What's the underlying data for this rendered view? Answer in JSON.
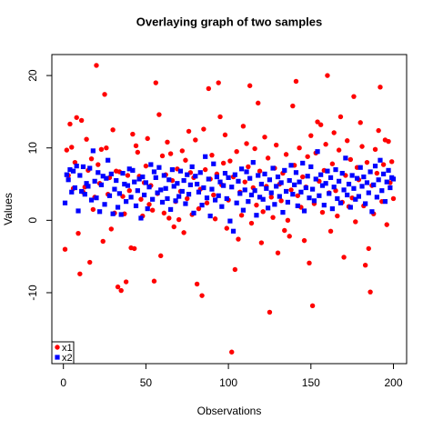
{
  "chart_data": {
    "type": "scatter",
    "title": "Overlaying graph of two samples",
    "xlabel": "Observations",
    "ylabel": "Values",
    "x": [
      1,
      2,
      3,
      4,
      5,
      6,
      7,
      8,
      9,
      10,
      11,
      12,
      13,
      14,
      15,
      16,
      17,
      18,
      19,
      20,
      21,
      22,
      23,
      24,
      25,
      26,
      27,
      28,
      29,
      30,
      31,
      32,
      33,
      34,
      35,
      36,
      37,
      38,
      39,
      40,
      41,
      42,
      43,
      44,
      45,
      46,
      47,
      48,
      49,
      50,
      51,
      52,
      53,
      54,
      55,
      56,
      57,
      58,
      59,
      60,
      61,
      62,
      63,
      64,
      65,
      66,
      67,
      68,
      69,
      70,
      71,
      72,
      73,
      74,
      75,
      76,
      77,
      78,
      79,
      80,
      81,
      82,
      83,
      84,
      85,
      86,
      87,
      88,
      89,
      90,
      91,
      92,
      93,
      94,
      95,
      96,
      97,
      98,
      99,
      100,
      101,
      102,
      103,
      104,
      105,
      106,
      107,
      108,
      109,
      110,
      111,
      112,
      113,
      114,
      115,
      116,
      117,
      118,
      119,
      120,
      121,
      122,
      123,
      124,
      125,
      126,
      127,
      128,
      129,
      130,
      131,
      132,
      133,
      134,
      135,
      136,
      137,
      138,
      139,
      140,
      141,
      142,
      143,
      144,
      145,
      146,
      147,
      148,
      149,
      150,
      151,
      152,
      153,
      154,
      155,
      156,
      157,
      158,
      159,
      160,
      161,
      162,
      163,
      164,
      165,
      166,
      167,
      168,
      169,
      170,
      171,
      172,
      173,
      174,
      175,
      176,
      177,
      178,
      179,
      180,
      181,
      182,
      183,
      184,
      185,
      186,
      187,
      188,
      189,
      190,
      191,
      192,
      193,
      194,
      195,
      196,
      197,
      198,
      199,
      200
    ],
    "series": [
      {
        "name": "x1",
        "color": "#ff0000",
        "marker": "circle",
        "values": [
          -4.0,
          9.7,
          6.2,
          13.3,
          10.1,
          4.4,
          8.0,
          14.2,
          -1.8,
          -7.4,
          13.8,
          3.9,
          4.6,
          11.2,
          6.9,
          -5.8,
          8.5,
          1.5,
          3.2,
          21.4,
          7.7,
          5.1,
          9.8,
          -2.9,
          17.4,
          10.0,
          3.6,
          5.9,
          -1.2,
          12.5,
          1.0,
          6.8,
          -9.2,
          6.7,
          -9.7,
          3.3,
          0.9,
          -8.5,
          6.2,
          4.1,
          -3.8,
          11.9,
          -3.9,
          10.3,
          9.4,
          6.1,
          2.9,
          0.6,
          5.2,
          7.5,
          11.3,
          2.2,
          4.8,
          1.4,
          -8.4,
          19.0,
          3.7,
          14.6,
          -4.9,
          8.9,
          1.0,
          6.3,
          10.8,
          0.3,
          9.2,
          5.5,
          -0.9,
          2.6,
          7.1,
          0.1,
          4.0,
          9.6,
          -1.7,
          8.3,
          3.0,
          12.3,
          6.6,
          0.8,
          5.9,
          11.1,
          -8.8,
          1.6,
          4.3,
          -10.4,
          12.6,
          7.0,
          2.4,
          18.2,
          5.7,
          9.0,
          3.5,
          0.2,
          6.4,
          19.0,
          14.3,
          4.9,
          7.9,
          11.8,
          -1.1,
          2.8,
          8.2,
          -18.2,
          6.0,
          -6.8,
          9.5,
          -2.6,
          3.9,
          0.7,
          13.0,
          5.3,
          10.6,
          7.4,
          18.6,
          -0.4,
          4.5,
          9.9,
          2.1,
          16.2,
          6.8,
          -3.1,
          1.2,
          11.5,
          4.7,
          8.6,
          -12.7,
          3.2,
          0.4,
          7.2,
          10.4,
          -4.5,
          5.0,
          2.7,
          6.5,
          -1.4,
          9.1,
          0.0,
          -2.2,
          4.2,
          15.8,
          7.6,
          19.2,
          3.4,
          10.0,
          1.8,
          6.0,
          -2.8,
          4.6,
          8.8,
          -5.9,
          11.7,
          -11.8,
          2.3,
          9.3,
          13.6,
          5.4,
          13.2,
          1.1,
          6.9,
          10.5,
          20.0,
          3.8,
          -1.5,
          7.8,
          12.1,
          4.1,
          0.6,
          9.7,
          14.3,
          2.5,
          -5.1,
          6.2,
          11.0,
          1.9,
          8.4,
          3.1,
          17.1,
          -0.2,
          7.3,
          5.6,
          13.5,
          10.2,
          2.0,
          -6.2,
          8.0,
          -3.9,
          -9.9,
          4.8,
          0.9,
          9.8,
          6.5,
          12.4,
          18.4,
          2.6,
          7.7,
          11.1,
          -0.6,
          10.9,
          5.2,
          8.1,
          3.0
        ]
      },
      {
        "name": "x2",
        "color": "#0000ff",
        "marker": "square",
        "values": [
          2.4,
          6.3,
          5.6,
          7.0,
          3.9,
          6.8,
          4.5,
          7.5,
          1.3,
          6.2,
          4.0,
          7.4,
          3.6,
          5.1,
          4.7,
          7.2,
          2.8,
          9.6,
          5.4,
          3.1,
          6.6,
          1.2,
          4.9,
          6.1,
          2.2,
          5.8,
          8.3,
          3.4,
          6.4,
          0.9,
          4.3,
          5.5,
          1.8,
          3.7,
          0.8,
          6.5,
          5.0,
          2.6,
          4.8,
          7.1,
          3.2,
          6.9,
          5.3,
          2.0,
          4.1,
          5.7,
          0.3,
          6.0,
          3.5,
          5.2,
          1.6,
          4.6,
          7.7,
          2.9,
          6.7,
          5.9,
          3.8,
          7.3,
          4.2,
          2.5,
          6.2,
          4.4,
          3.0,
          5.6,
          1.5,
          7.0,
          4.7,
          2.7,
          5.1,
          3.3,
          6.8,
          4.0,
          5.5,
          2.3,
          6.3,
          3.6,
          4.9,
          7.4,
          1.0,
          6.1,
          5.0,
          3.9,
          6.6,
          2.1,
          4.5,
          8.8,
          3.1,
          5.7,
          0.6,
          4.3,
          7.8,
          2.8,
          6.0,
          3.4,
          5.3,
          1.9,
          4.8,
          6.5,
          3.0,
          5.9,
          -0.1,
          4.6,
          -1.5,
          6.3,
          2.4,
          5.4,
          3.7,
          7.1,
          1.4,
          4.2,
          6.7,
          2.6,
          5.8,
          3.5,
          8.0,
          4.1,
          0.7,
          6.2,
          3.2,
          5.0,
          2.9,
          6.4,
          4.4,
          1.7,
          5.6,
          3.8,
          7.2,
          2.2,
          4.7,
          6.0,
          3.3,
          5.2,
          1.1,
          6.9,
          4.0,
          2.5,
          5.5,
          7.6,
          3.6,
          4.9,
          6.6,
          2.0,
          5.3,
          3.9,
          7.9,
          1.3,
          4.5,
          6.1,
          3.1,
          7.4,
          4.3,
          2.7,
          5.7,
          9.5,
          3.4,
          6.3,
          4.8,
          2.1,
          5.1,
          6.8,
          3.7,
          5.9,
          1.6,
          4.6,
          7.0,
          3.0,
          5.4,
          2.4,
          6.5,
          4.2,
          8.6,
          3.5,
          5.0,
          1.8,
          6.2,
          4.4,
          2.9,
          5.8,
          3.3,
          7.3,
          4.7,
          6.0,
          2.3,
          5.2,
          3.8,
          6.7,
          1.2,
          4.9,
          7.5,
          3.2,
          5.6,
          8.3,
          4.1,
          6.4,
          2.6,
          5.3,
          6.9,
          4.5,
          5.9,
          5.7
        ]
      }
    ],
    "xlim": [
      -7,
      208
    ],
    "xticks": [
      0,
      50,
      100,
      150,
      200
    ],
    "ylim": [
      -19.8,
      22.9
    ],
    "yticks": [
      -10,
      0,
      10,
      20
    ],
    "legend": "bottomleft"
  }
}
